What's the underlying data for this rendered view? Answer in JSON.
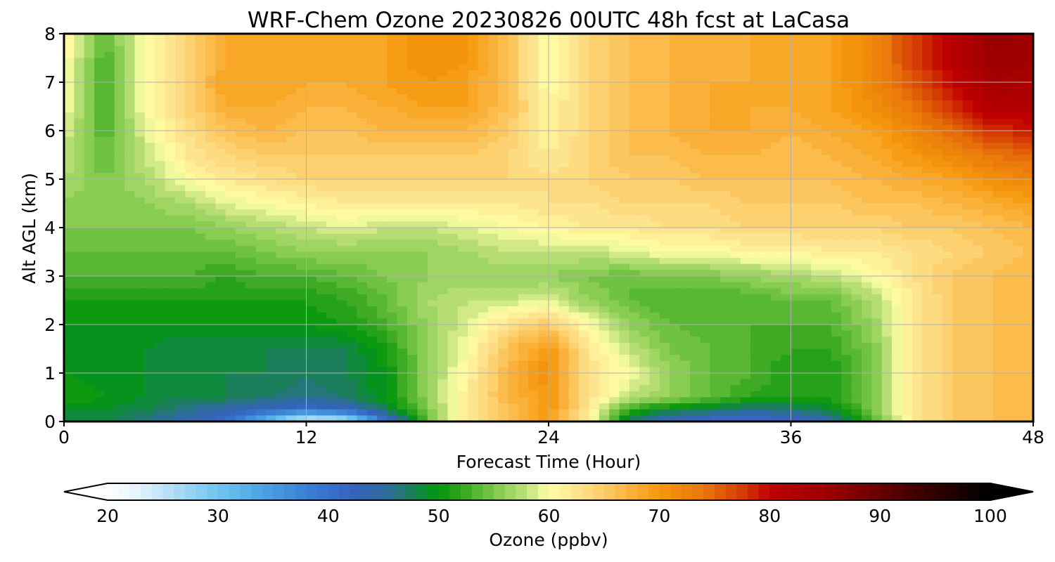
{
  "chart_data": {
    "type": "heatmap",
    "title": "WRF-Chem Ozone  20230826 00UTC 48h fcst at LaCasa",
    "xlabel": "Forecast Time (Hour)",
    "ylabel": "Alt AGL (km)",
    "xlim": [
      0,
      48
    ],
    "ylim": [
      0,
      8
    ],
    "xticks": [
      0,
      12,
      24,
      36,
      48
    ],
    "yticks": [
      0,
      1,
      2,
      3,
      4,
      5,
      6,
      7,
      8
    ],
    "grid": true,
    "x": [
      0,
      2,
      4,
      6,
      8,
      10,
      12,
      14,
      16,
      18,
      20,
      22,
      24,
      26,
      28,
      30,
      32,
      34,
      36,
      38,
      40,
      42,
      44,
      46,
      48
    ],
    "y": [
      0,
      0.25,
      0.5,
      1,
      1.5,
      2,
      2.5,
      3,
      3.5,
      4,
      4.5,
      5,
      5.5,
      6,
      6.5,
      7,
      7.5,
      8
    ],
    "z": [
      [
        49,
        48,
        46,
        44,
        40,
        30,
        22,
        24,
        40,
        54,
        62,
        66,
        70,
        61,
        47,
        43,
        40,
        40,
        41,
        44,
        53,
        62,
        65,
        66,
        67
      ],
      [
        49,
        49,
        48,
        46,
        44,
        42,
        40,
        42,
        48,
        55,
        62,
        66,
        70,
        62,
        52,
        49,
        48,
        46,
        47,
        49,
        55,
        62,
        65,
        66,
        67
      ],
      [
        51,
        50,
        49,
        48,
        48,
        47,
        46,
        47,
        50,
        56,
        62,
        67,
        70,
        63,
        58,
        56,
        54,
        52,
        51,
        51,
        55,
        62,
        65,
        66,
        67
      ],
      [
        50,
        49,
        49,
        48,
        48,
        48,
        47,
        48,
        50,
        56,
        61,
        67,
        71,
        63,
        60,
        56,
        54,
        53,
        51,
        51,
        55,
        62,
        65,
        66,
        67
      ],
      [
        49,
        49,
        49,
        48,
        48,
        48,
        48,
        48,
        51,
        56,
        60,
        66,
        70,
        62,
        58,
        55,
        54,
        53,
        52,
        52,
        55,
        62,
        65,
        66,
        67
      ],
      [
        50,
        50,
        50,
        50,
        50,
        50,
        50,
        51,
        53,
        56,
        59,
        63,
        65,
        60,
        56,
        54,
        53,
        53,
        53,
        53,
        56,
        62,
        65,
        66,
        67
      ],
      [
        51,
        51,
        51,
        51,
        51,
        51,
        51,
        52,
        54,
        57,
        58,
        58,
        59,
        56,
        54,
        53,
        53,
        53,
        54,
        54,
        57,
        62,
        65,
        66,
        67
      ],
      [
        53,
        53,
        53,
        53,
        52,
        53,
        53,
        54,
        55,
        56,
        56,
        56,
        56,
        55,
        54,
        55,
        55,
        56,
        57,
        58,
        60,
        63,
        65,
        66,
        67
      ],
      [
        54,
        54,
        54,
        54,
        54,
        55,
        56,
        56,
        56,
        56,
        57,
        58,
        58,
        58,
        59,
        60,
        60,
        61,
        61,
        62,
        62,
        63,
        64,
        65,
        66
      ],
      [
        55,
        55,
        55,
        55,
        56,
        57,
        58,
        59,
        58,
        58,
        59,
        60,
        61,
        62,
        62,
        63,
        63,
        64,
        64,
        64,
        64,
        65,
        65,
        66,
        67
      ],
      [
        56,
        55,
        56,
        57,
        59,
        60,
        61,
        62,
        62,
        62,
        62,
        62,
        63,
        63,
        64,
        64,
        64,
        65,
        65,
        65,
        66,
        66,
        67,
        68,
        69
      ],
      [
        57,
        55,
        57,
        60,
        62,
        63,
        64,
        64,
        64,
        64,
        64,
        64,
        63,
        64,
        65,
        65,
        66,
        66,
        66,
        66,
        67,
        68,
        69,
        71,
        72
      ],
      [
        58,
        54,
        58,
        62,
        64,
        65,
        65,
        65,
        65,
        65,
        65,
        64,
        62,
        64,
        66,
        66,
        67,
        67,
        66,
        67,
        68,
        70,
        72,
        74,
        75
      ],
      [
        59,
        53,
        59,
        63,
        66,
        67,
        66,
        66,
        67,
        67,
        67,
        65,
        61,
        64,
        66,
        67,
        68,
        68,
        67,
        68,
        69,
        72,
        75,
        78,
        79
      ],
      [
        60,
        53,
        60,
        64,
        68,
        68,
        67,
        67,
        68,
        69,
        69,
        66,
        61,
        64,
        66,
        67,
        68,
        68,
        68,
        69,
        71,
        74,
        78,
        82,
        82
      ],
      [
        61,
        52,
        60,
        64,
        69,
        69,
        68,
        68,
        69,
        70,
        69,
        66,
        60,
        64,
        66,
        67,
        68,
        68,
        68,
        69,
        72,
        76,
        80,
        84,
        83
      ],
      [
        61,
        53,
        60,
        64,
        68,
        69,
        68,
        68,
        69,
        71,
        70,
        66,
        60,
        64,
        66,
        67,
        67,
        68,
        68,
        69,
        72,
        77,
        81,
        85,
        84
      ],
      [
        61,
        54,
        60,
        64,
        68,
        69,
        68,
        68,
        69,
        71,
        70,
        66,
        60,
        64,
        66,
        67,
        67,
        68,
        68,
        69,
        72,
        77,
        81,
        86,
        84
      ]
    ],
    "colorbar": {
      "label": "Ozone  (ppbv)",
      "min": 20,
      "max": 100,
      "step": 1,
      "ticks": [
        20,
        30,
        40,
        50,
        60,
        70,
        80,
        90,
        100
      ],
      "extend": "both",
      "stops": [
        [
          20,
          "#ffffff"
        ],
        [
          23,
          "#e1f2fc"
        ],
        [
          26,
          "#afdcf6"
        ],
        [
          30,
          "#6ec5f0"
        ],
        [
          34,
          "#4aa4e5"
        ],
        [
          38,
          "#3a7fd4"
        ],
        [
          42,
          "#3563bf"
        ],
        [
          45,
          "#2f6aa1"
        ],
        [
          47,
          "#207a6a"
        ],
        [
          49,
          "#0b8f2e"
        ],
        [
          50,
          "#00960c"
        ],
        [
          52,
          "#33a51e"
        ],
        [
          55,
          "#7cc848"
        ],
        [
          58,
          "#c2e17c"
        ],
        [
          60,
          "#ffffa6"
        ],
        [
          63,
          "#fde08a"
        ],
        [
          66,
          "#fcc155"
        ],
        [
          70,
          "#f6970c"
        ],
        [
          74,
          "#e9770a"
        ],
        [
          78,
          "#d23304"
        ],
        [
          80,
          "#c00000"
        ],
        [
          86,
          "#950000"
        ],
        [
          92,
          "#500000"
        ],
        [
          100,
          "#000000"
        ]
      ]
    }
  }
}
